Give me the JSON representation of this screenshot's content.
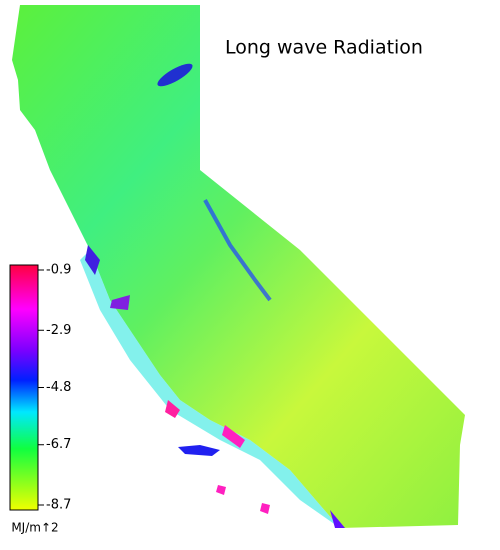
{
  "title": "Long wave Radiation",
  "colorbar": {
    "ticks": [
      -0.9,
      -2.9,
      -4.8,
      -6.7,
      -8.7
    ],
    "unit": "MJ/m↑2"
  }
}
